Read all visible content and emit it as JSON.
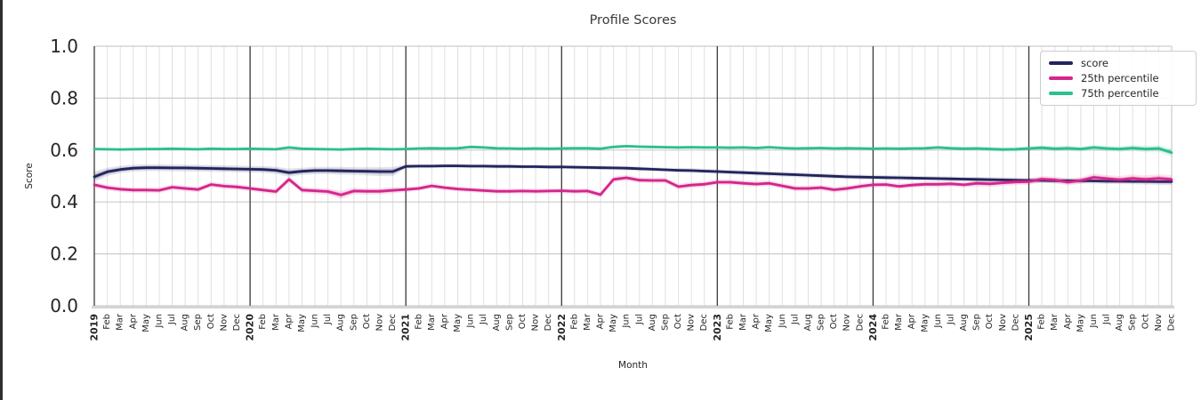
{
  "chart_data": {
    "type": "line",
    "title": "Profile Scores",
    "xlabel": "Month",
    "ylabel": "Score",
    "ylim": [
      0.0,
      1.0
    ],
    "yticks": [
      0.0,
      0.2,
      0.4,
      0.6,
      0.8,
      1.0
    ],
    "ytick_labels": [
      "0.0",
      "0.2",
      "0.4",
      "0.6",
      "0.8",
      "1.0"
    ],
    "grid": true,
    "legend_position": "upper right",
    "x": [
      "2019",
      "Feb",
      "Mar",
      "Apr",
      "May",
      "Jun",
      "Jul",
      "Aug",
      "Sep",
      "Oct",
      "Nov",
      "Dec",
      "2020",
      "Feb",
      "Mar",
      "Apr",
      "May",
      "Jun",
      "Jul",
      "Aug",
      "Sep",
      "Oct",
      "Nov",
      "Dec",
      "2021",
      "Feb",
      "Mar",
      "Apr",
      "May",
      "Jun",
      "Jul",
      "Aug",
      "Sep",
      "Oct",
      "Nov",
      "Dec",
      "2022",
      "Feb",
      "Mar",
      "Apr",
      "May",
      "Jun",
      "Jul",
      "Aug",
      "Sep",
      "Oct",
      "Nov",
      "Dec",
      "2023",
      "Feb",
      "Mar",
      "Apr",
      "May",
      "Jun",
      "Jul",
      "Aug",
      "Sep",
      "Oct",
      "Nov",
      "Dec",
      "2024",
      "Feb",
      "Mar",
      "Apr",
      "May",
      "Jun",
      "Jul",
      "Aug",
      "Sep",
      "Oct",
      "Nov",
      "Dec",
      "2025",
      "Feb",
      "Mar",
      "Apr",
      "May",
      "Jun",
      "Jul",
      "Aug",
      "Sep",
      "Oct",
      "Nov",
      "Dec"
    ],
    "year_tick_indices": [
      0,
      12,
      24,
      36,
      48,
      60,
      72
    ],
    "series": [
      {
        "name": "score",
        "color": "#22245c",
        "values": [
          0.497,
          0.516,
          0.525,
          0.53,
          0.532,
          0.532,
          0.531,
          0.531,
          0.53,
          0.529,
          0.528,
          0.527,
          0.526,
          0.525,
          0.522,
          0.513,
          0.518,
          0.521,
          0.521,
          0.52,
          0.519,
          0.518,
          0.517,
          0.517,
          0.537,
          0.538,
          0.538,
          0.539,
          0.539,
          0.538,
          0.538,
          0.537,
          0.537,
          0.536,
          0.536,
          0.535,
          0.535,
          0.534,
          0.533,
          0.532,
          0.531,
          0.53,
          0.528,
          0.526,
          0.524,
          0.522,
          0.521,
          0.519,
          0.517,
          0.515,
          0.513,
          0.511,
          0.509,
          0.507,
          0.505,
          0.503,
          0.501,
          0.499,
          0.497,
          0.496,
          0.495,
          0.494,
          0.493,
          0.492,
          0.491,
          0.49,
          0.489,
          0.488,
          0.487,
          0.486,
          0.485,
          0.484,
          0.483,
          0.483,
          0.482,
          0.482,
          0.481,
          0.481,
          0.48,
          0.48,
          0.479,
          0.479,
          0.478,
          0.478
        ],
        "band": [
          0.02,
          0.016,
          0.014,
          0.013,
          0.013,
          0.013,
          0.013,
          0.013,
          0.013,
          0.013,
          0.013,
          0.013,
          0.013,
          0.013,
          0.014,
          0.015,
          0.014,
          0.014,
          0.014,
          0.015,
          0.015,
          0.016,
          0.017,
          0.018,
          0.008,
          0.008,
          0.008,
          0.008,
          0.008,
          0.008,
          0.008,
          0.008,
          0.008,
          0.008,
          0.008,
          0.008,
          0.008,
          0.008,
          0.008,
          0.008,
          0.008,
          0.008,
          0.008,
          0.008,
          0.008,
          0.009,
          0.009,
          0.009,
          0.009,
          0.009,
          0.009,
          0.009,
          0.009,
          0.009,
          0.009,
          0.009,
          0.009,
          0.009,
          0.009,
          0.009,
          0.009,
          0.009,
          0.009,
          0.009,
          0.009,
          0.009,
          0.009,
          0.009,
          0.01,
          0.01,
          0.01,
          0.01,
          0.01,
          0.01,
          0.01,
          0.01,
          0.01,
          0.01,
          0.011,
          0.011,
          0.011,
          0.012,
          0.012,
          0.013
        ]
      },
      {
        "name": "25th percentile",
        "color": "#d5268c",
        "values": [
          0.466,
          0.455,
          0.449,
          0.446,
          0.446,
          0.445,
          0.457,
          0.452,
          0.448,
          0.467,
          0.461,
          0.458,
          0.452,
          0.446,
          0.44,
          0.487,
          0.446,
          0.443,
          0.44,
          0.427,
          0.442,
          0.441,
          0.441,
          0.445,
          0.448,
          0.452,
          0.462,
          0.455,
          0.45,
          0.447,
          0.444,
          0.441,
          0.441,
          0.442,
          0.441,
          0.442,
          0.443,
          0.441,
          0.442,
          0.428,
          0.487,
          0.493,
          0.484,
          0.483,
          0.483,
          0.459,
          0.465,
          0.468,
          0.476,
          0.476,
          0.472,
          0.469,
          0.472,
          0.462,
          0.452,
          0.452,
          0.455,
          0.447,
          0.452,
          0.46,
          0.466,
          0.467,
          0.46,
          0.465,
          0.468,
          0.468,
          0.47,
          0.466,
          0.472,
          0.47,
          0.474,
          0.477,
          0.478,
          0.488,
          0.485,
          0.476,
          0.483,
          0.495,
          0.49,
          0.486,
          0.491,
          0.487,
          0.491,
          0.487
        ],
        "band": [
          0.012,
          0.011,
          0.011,
          0.011,
          0.011,
          0.011,
          0.011,
          0.011,
          0.011,
          0.011,
          0.011,
          0.011,
          0.011,
          0.011,
          0.012,
          0.013,
          0.012,
          0.012,
          0.013,
          0.016,
          0.013,
          0.012,
          0.012,
          0.012,
          0.01,
          0.01,
          0.01,
          0.01,
          0.01,
          0.01,
          0.01,
          0.01,
          0.01,
          0.01,
          0.01,
          0.01,
          0.01,
          0.01,
          0.01,
          0.011,
          0.011,
          0.011,
          0.011,
          0.011,
          0.011,
          0.011,
          0.011,
          0.011,
          0.011,
          0.011,
          0.011,
          0.011,
          0.011,
          0.011,
          0.011,
          0.011,
          0.011,
          0.011,
          0.011,
          0.011,
          0.011,
          0.011,
          0.011,
          0.011,
          0.011,
          0.011,
          0.011,
          0.011,
          0.012,
          0.012,
          0.012,
          0.012,
          0.012,
          0.013,
          0.013,
          0.013,
          0.013,
          0.014,
          0.014,
          0.014,
          0.015,
          0.015,
          0.016,
          0.016
        ]
      },
      {
        "name": "75th percentile",
        "color": "#2cbe90",
        "values": [
          0.604,
          0.603,
          0.602,
          0.603,
          0.604,
          0.604,
          0.605,
          0.604,
          0.603,
          0.605,
          0.604,
          0.604,
          0.605,
          0.604,
          0.603,
          0.61,
          0.605,
          0.604,
          0.603,
          0.602,
          0.604,
          0.605,
          0.604,
          0.603,
          0.604,
          0.606,
          0.607,
          0.606,
          0.607,
          0.612,
          0.61,
          0.607,
          0.606,
          0.605,
          0.606,
          0.605,
          0.606,
          0.607,
          0.607,
          0.605,
          0.612,
          0.615,
          0.613,
          0.612,
          0.611,
          0.61,
          0.611,
          0.61,
          0.61,
          0.609,
          0.61,
          0.608,
          0.611,
          0.608,
          0.606,
          0.607,
          0.608,
          0.606,
          0.607,
          0.606,
          0.605,
          0.606,
          0.605,
          0.606,
          0.607,
          0.61,
          0.607,
          0.605,
          0.606,
          0.604,
          0.602,
          0.603,
          0.606,
          0.609,
          0.605,
          0.607,
          0.604,
          0.61,
          0.606,
          0.604,
          0.608,
          0.604,
          0.606,
          0.59
        ],
        "band": [
          0.005,
          0.005,
          0.005,
          0.005,
          0.005,
          0.005,
          0.005,
          0.005,
          0.005,
          0.005,
          0.005,
          0.005,
          0.005,
          0.005,
          0.005,
          0.006,
          0.005,
          0.005,
          0.005,
          0.005,
          0.005,
          0.005,
          0.005,
          0.005,
          0.005,
          0.005,
          0.006,
          0.006,
          0.006,
          0.006,
          0.006,
          0.006,
          0.005,
          0.005,
          0.005,
          0.005,
          0.006,
          0.006,
          0.006,
          0.006,
          0.006,
          0.006,
          0.006,
          0.006,
          0.006,
          0.006,
          0.006,
          0.006,
          0.006,
          0.006,
          0.006,
          0.006,
          0.006,
          0.006,
          0.006,
          0.006,
          0.006,
          0.006,
          0.006,
          0.006,
          0.006,
          0.006,
          0.006,
          0.006,
          0.006,
          0.007,
          0.007,
          0.007,
          0.008,
          0.009,
          0.009,
          0.009,
          0.009,
          0.01,
          0.01,
          0.01,
          0.01,
          0.011,
          0.011,
          0.011,
          0.012,
          0.013,
          0.014,
          0.016
        ]
      }
    ],
    "colors": {
      "grid_minor": "#e0e0e0",
      "grid_major": "#cccccc",
      "year_line": "#3a3a3a",
      "axis_spine": "#d4d4d4",
      "tick_text": "#262626"
    }
  }
}
